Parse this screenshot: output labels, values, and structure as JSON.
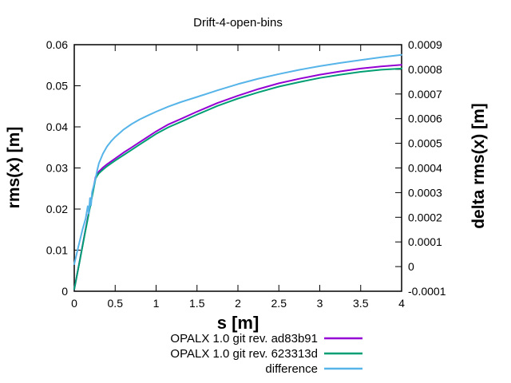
{
  "title": "Drift-4-open-bins",
  "chart_data": {
    "type": "line",
    "title": "Drift-4-open-bins",
    "xlabel": "s [m]",
    "ylabel": "rms(x) [m]",
    "y2label": "delta rms(x) [m]",
    "xlim": [
      0,
      4
    ],
    "ylim": [
      0,
      0.06
    ],
    "y2lim": [
      -0.0001,
      0.0009
    ],
    "grid": false,
    "legend_position": "below-plot-right",
    "background_color": "#ffffff",
    "frame_color": "#000000",
    "xticks": {
      "values": [
        0,
        0.5,
        1,
        1.5,
        2,
        2.5,
        3,
        3.5,
        4
      ],
      "labels": [
        "0",
        "0.5",
        "1",
        "1.5",
        "2",
        "2.5",
        "3",
        "3.5",
        "4"
      ]
    },
    "yticks": {
      "values": [
        0,
        0.01,
        0.02,
        0.03,
        0.04,
        0.05,
        0.06
      ],
      "labels": [
        "0",
        "0.01",
        "0.02",
        "0.03",
        "0.04",
        "0.05",
        "0.06"
      ]
    },
    "y2ticks": {
      "values": [
        -0.0001,
        0,
        0.0001,
        0.0002,
        0.0003,
        0.0004,
        0.0005,
        0.0006,
        0.0007,
        0.0008,
        0.0009
      ],
      "labels": [
        "-0.0001",
        "0",
        "0.0001",
        "0.0002",
        "0.0003",
        "0.0004",
        "0.0005",
        "0.0006",
        "0.0007",
        "0.0008",
        "0.0009"
      ]
    },
    "series": [
      {
        "name": "OPALX 1.0 git rev. ad83b91",
        "color": "#9400d3",
        "axis": "left",
        "points": [
          [
            0,
            0.0005
          ],
          [
            0.065,
            0.0073
          ],
          [
            0.13,
            0.0142
          ],
          [
            0.195,
            0.021
          ],
          [
            0.26,
            0.0278
          ],
          [
            0.28,
            0.0285
          ],
          [
            0.3,
            0.0291
          ],
          [
            0.35,
            0.0301
          ],
          [
            0.4,
            0.0309
          ],
          [
            0.45,
            0.0316
          ],
          [
            0.5,
            0.0323
          ],
          [
            0.6,
            0.0337
          ],
          [
            0.7,
            0.035
          ],
          [
            0.8,
            0.0363
          ],
          [
            0.9,
            0.0376
          ],
          [
            1.0,
            0.0389
          ],
          [
            1.15,
            0.0406
          ],
          [
            1.3,
            0.0419
          ],
          [
            1.5,
            0.0437
          ],
          [
            1.75,
            0.0458
          ],
          [
            2.0,
            0.0476
          ],
          [
            2.25,
            0.0492
          ],
          [
            2.5,
            0.0506
          ],
          [
            2.75,
            0.0517
          ],
          [
            3.0,
            0.0527
          ],
          [
            3.25,
            0.0535
          ],
          [
            3.5,
            0.0542
          ],
          [
            3.75,
            0.0547
          ],
          [
            4.0,
            0.0551
          ]
        ]
      },
      {
        "name": "OPALX 1.0 git rev. 623313d",
        "color": "#009e73",
        "axis": "left",
        "points": [
          [
            0,
            0.0005
          ],
          [
            0.065,
            0.0072
          ],
          [
            0.13,
            0.014
          ],
          [
            0.195,
            0.0207
          ],
          [
            0.26,
            0.0274
          ],
          [
            0.28,
            0.0281
          ],
          [
            0.3,
            0.0287
          ],
          [
            0.35,
            0.0296
          ],
          [
            0.4,
            0.0304
          ],
          [
            0.45,
            0.0311
          ],
          [
            0.5,
            0.0318
          ],
          [
            0.6,
            0.0331
          ],
          [
            0.7,
            0.0344
          ],
          [
            0.8,
            0.0357
          ],
          [
            0.9,
            0.037
          ],
          [
            1.0,
            0.0383
          ],
          [
            1.15,
            0.0399
          ],
          [
            1.3,
            0.0412
          ],
          [
            1.5,
            0.043
          ],
          [
            1.75,
            0.0451
          ],
          [
            2.0,
            0.0469
          ],
          [
            2.25,
            0.0484
          ],
          [
            2.5,
            0.0498
          ],
          [
            2.75,
            0.0509
          ],
          [
            3.0,
            0.0519
          ],
          [
            3.25,
            0.0527
          ],
          [
            3.5,
            0.0534
          ],
          [
            3.75,
            0.0539
          ],
          [
            4.0,
            0.0542
          ]
        ]
      },
      {
        "name": "difference",
        "color": "#56b4e9",
        "axis": "right",
        "points": [
          [
            0,
            1e-05
          ],
          [
            0.05,
            8e-05
          ],
          [
            0.1,
            0.00015
          ],
          [
            0.14,
            0.000195
          ],
          [
            0.165,
            0.000245
          ],
          [
            0.178,
            0.000215
          ],
          [
            0.192,
            0.000278
          ],
          [
            0.205,
            0.000248
          ],
          [
            0.218,
            0.000302
          ],
          [
            0.24,
            0.00033
          ],
          [
            0.26,
            0.000358
          ],
          [
            0.28,
            0.00039
          ],
          [
            0.3,
            0.000418
          ],
          [
            0.35,
            0.000458
          ],
          [
            0.4,
            0.000487
          ],
          [
            0.45,
            0.000508
          ],
          [
            0.5,
            0.000526
          ],
          [
            0.6,
            0.000555
          ],
          [
            0.7,
            0.000578
          ],
          [
            0.8,
            0.000597
          ],
          [
            0.9,
            0.000613
          ],
          [
            1.0,
            0.000628
          ],
          [
            1.15,
            0.000649
          ],
          [
            1.3,
            0.000667
          ],
          [
            1.5,
            0.000688
          ],
          [
            1.75,
            0.000715
          ],
          [
            2.0,
            0.00074
          ],
          [
            2.25,
            0.000762
          ],
          [
            2.5,
            0.000781
          ],
          [
            2.75,
            0.000798
          ],
          [
            3.0,
            0.000813
          ],
          [
            3.25,
            0.000826
          ],
          [
            3.5,
            0.000838
          ],
          [
            3.75,
            0.000849
          ],
          [
            4.0,
            0.000859
          ]
        ]
      }
    ]
  }
}
